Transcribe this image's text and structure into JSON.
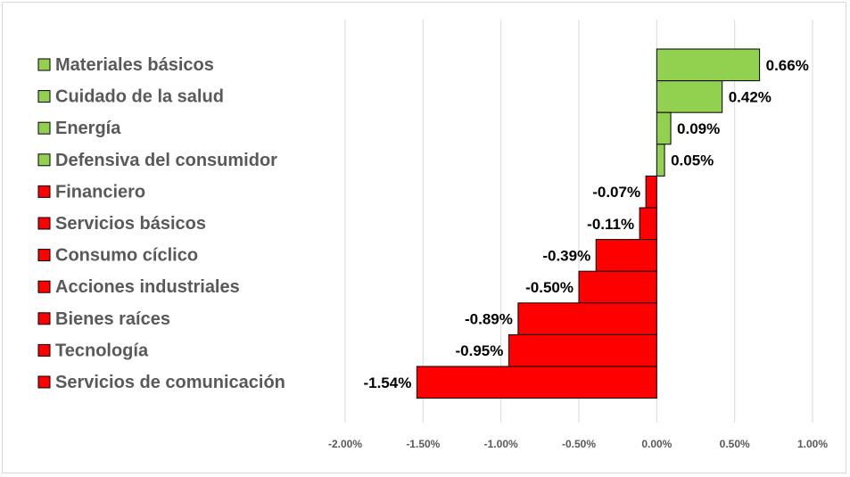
{
  "chart_data": {
    "type": "bar",
    "orientation": "horizontal",
    "categories": [
      "Materiales básicos",
      "Cuidado de la salud",
      "Energía",
      "Defensiva del consumidor",
      "Financiero",
      "Servicios básicos",
      "Consumo cíclico",
      "Acciones industriales",
      "Bienes raíces",
      "Tecnología",
      "Servicios de comunicación"
    ],
    "values": [
      0.66,
      0.42,
      0.09,
      0.05,
      -0.07,
      -0.11,
      -0.39,
      -0.5,
      -0.89,
      -0.95,
      -1.54
    ],
    "data_labels": [
      "0.66%",
      "0.42%",
      "0.09%",
      "0.05%",
      "-0.07%",
      "-0.11%",
      "-0.39%",
      "-0.50%",
      "-0.89%",
      "-0.95%",
      "-1.54%"
    ],
    "xlim": [
      -2.0,
      1.0
    ],
    "x_ticks": [
      -2.0,
      -1.5,
      -1.0,
      -0.5,
      0.0,
      0.5,
      1.0
    ],
    "x_tick_labels": [
      "-2.00%",
      "-1.50%",
      "-1.00%",
      "-0.50%",
      "0.00%",
      "0.50%",
      "1.00%"
    ],
    "title": "",
    "xlabel": "",
    "ylabel": "",
    "grid": "vertical",
    "legend": "left",
    "colors": {
      "positive": "#92d050",
      "negative": "#ff0000",
      "gridline": "#d9d9d9",
      "label": "#595959"
    }
  }
}
